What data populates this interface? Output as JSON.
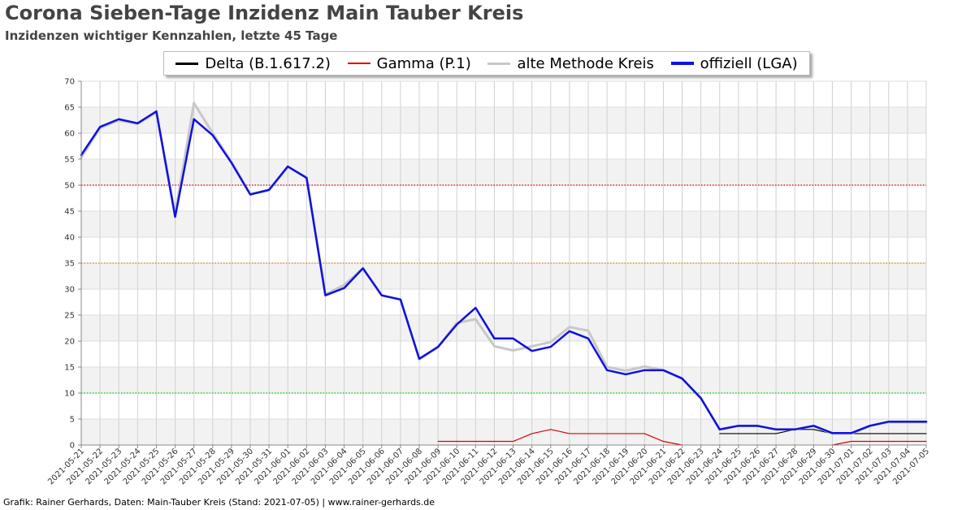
{
  "header": {
    "title": "Corona Sieben-Tage Inzidenz Main Tauber Kreis",
    "subtitle": "Inzidenzen wichtiger Kennzahlen, letzte 45 Tage"
  },
  "footer": {
    "credit": "Grafik: Rainer Gerhards, Daten: Main-Tauber Kreis (Stand: 2021-07-05) | www.rainer-gerhards.de"
  },
  "chart_data": {
    "type": "line",
    "title": "Corona Sieben-Tage Inzidenz Main Tauber Kreis",
    "subtitle": "Inzidenzen wichtiger Kennzahlen, letzte 45 Tage",
    "xlabel": "",
    "ylabel": "",
    "ylim": [
      0,
      70
    ],
    "yticks": [
      0,
      5,
      10,
      15,
      20,
      25,
      30,
      35,
      40,
      45,
      50,
      55,
      60,
      65,
      70
    ],
    "grid": true,
    "legend_position": "top",
    "categories": [
      "2021-05-21",
      "2021-05-22",
      "2021-05-23",
      "2021-05-24",
      "2021-05-25",
      "2021-05-26",
      "2021-05-27",
      "2021-05-28",
      "2021-05-29",
      "2021-05-30",
      "2021-05-31",
      "2021-06-01",
      "2021-06-02",
      "2021-06-03",
      "2021-06-04",
      "2021-06-05",
      "2021-06-06",
      "2021-06-07",
      "2021-06-08",
      "2021-06-09",
      "2021-06-10",
      "2021-06-11",
      "2021-06-12",
      "2021-06-13",
      "2021-06-14",
      "2021-06-15",
      "2021-06-16",
      "2021-06-17",
      "2021-06-18",
      "2021-06-19",
      "2021-06-20",
      "2021-06-21",
      "2021-06-22",
      "2021-06-23",
      "2021-06-24",
      "2021-06-25",
      "2021-06-26",
      "2021-06-27",
      "2021-06-28",
      "2021-06-29",
      "2021-06-30",
      "2021-07-01",
      "2021-07-02",
      "2021-07-03",
      "2021-07-04",
      "2021-07-05"
    ],
    "series": [
      {
        "name": "Delta (B.1.617.2)",
        "color": "#000000",
        "values": [
          null,
          null,
          null,
          null,
          null,
          null,
          null,
          null,
          null,
          null,
          null,
          null,
          null,
          null,
          null,
          null,
          null,
          null,
          null,
          null,
          null,
          null,
          null,
          null,
          null,
          null,
          null,
          null,
          null,
          null,
          null,
          null,
          null,
          null,
          2.2,
          2.2,
          2.2,
          2.2,
          3.0,
          3.0,
          2.2,
          2.2,
          2.2,
          2.2,
          2.2,
          2.2
        ]
      },
      {
        "name": "Gamma (P.1)",
        "color": "#dd0000",
        "values": [
          null,
          null,
          null,
          null,
          null,
          null,
          null,
          null,
          null,
          null,
          null,
          null,
          null,
          null,
          null,
          null,
          null,
          null,
          null,
          0.7,
          0.7,
          0.7,
          0.7,
          0.7,
          2.2,
          3.0,
          2.2,
          2.2,
          2.2,
          2.2,
          2.2,
          0.7,
          0,
          null,
          null,
          null,
          null,
          null,
          null,
          null,
          0,
          0.7,
          0.7,
          0.7,
          0.7,
          0.7
        ]
      },
      {
        "name": "alte Methode Kreis",
        "color": "#c8c8c8",
        "values": [
          55.3,
          61.0,
          62.5,
          61.8,
          64.0,
          44.5,
          65.8,
          60.0,
          54.5,
          48.3,
          49.0,
          53.5,
          51.5,
          29.0,
          30.8,
          34.0,
          28.8,
          28.0,
          16.5,
          18.8,
          23.5,
          24.2,
          19.0,
          18.2,
          19.0,
          19.8,
          22.7,
          22.0,
          15.0,
          14.3,
          15.1,
          14.4,
          12.8,
          9.0,
          3.0,
          3.7,
          3.7,
          3.0,
          3.0,
          3.7,
          2.2,
          2.2,
          3.7,
          4.4,
          4.4,
          4.4
        ]
      },
      {
        "name": "offiziell (LGA)",
        "color": "#1010e0",
        "values": [
          55.8,
          61.2,
          62.7,
          61.9,
          64.2,
          43.9,
          62.7,
          59.6,
          54.3,
          48.2,
          49.1,
          53.6,
          51.4,
          28.8,
          30.2,
          34.0,
          28.8,
          28.0,
          16.6,
          18.9,
          23.2,
          26.4,
          20.5,
          20.5,
          18.1,
          18.9,
          21.9,
          20.5,
          14.4,
          13.6,
          14.4,
          14.4,
          12.8,
          9.0,
          3.0,
          3.7,
          3.7,
          3.0,
          3.0,
          3.7,
          2.3,
          2.3,
          3.7,
          4.5,
          4.5,
          4.5
        ]
      }
    ],
    "reference_lines": [
      {
        "value": 50,
        "color": "#cc0000"
      },
      {
        "value": 35,
        "color": "#e08000"
      },
      {
        "value": 10,
        "color": "#00cc00"
      }
    ]
  }
}
